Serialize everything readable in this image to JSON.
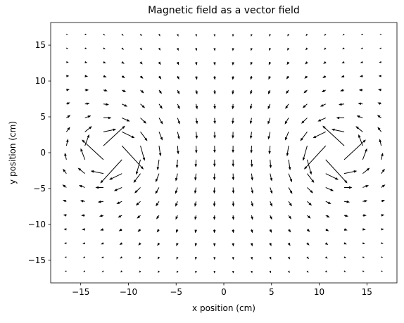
{
  "chart_data": {
    "type": "quiver",
    "title": "Magnetic field as a vector field",
    "x_label": "x position (cm)",
    "y_label": "y position (cm)",
    "color": "#000000",
    "xlim": [
      -18.15,
      18.15
    ],
    "ylim": [
      -18.15,
      18.15
    ],
    "xticks": [
      {
        "value": -15,
        "label": "−15"
      },
      {
        "value": -10,
        "label": "−10"
      },
      {
        "value": -5,
        "label": "−5"
      },
      0,
      5,
      10,
      15
    ],
    "yticks": [
      {
        "value": -15,
        "label": "−15"
      },
      {
        "value": -10,
        "label": "−10"
      },
      {
        "value": -5,
        "label": "−5"
      },
      0,
      5,
      10,
      15
    ],
    "x": [
      -16.5,
      -14.56,
      -12.62,
      -10.68,
      -8.74,
      -6.79,
      -4.85,
      -2.91,
      -0.97,
      0.97,
      2.91,
      4.85,
      6.79,
      8.74,
      10.68,
      12.62,
      14.56,
      16.5
    ],
    "y": [
      -16.5,
      -14.56,
      -12.62,
      -10.68,
      -8.74,
      -6.79,
      -4.85,
      -2.91,
      -0.97,
      0.97,
      2.91,
      4.85,
      6.79,
      8.74,
      10.68,
      12.62,
      14.56,
      16.5
    ],
    "u": [
      [
        -0.4,
        -0.42,
        -0.41,
        -0.39,
        -0.35,
        -0.29,
        -0.21,
        -0.13,
        -0.04,
        0.04,
        0.13,
        0.21,
        0.29,
        0.35,
        0.39,
        0.41,
        0.42,
        0.4
      ],
      [
        -0.47,
        -0.5,
        -0.5,
        -0.48,
        -0.43,
        -0.35,
        -0.26,
        -0.16,
        -0.06,
        0.06,
        0.16,
        0.26,
        0.35,
        0.43,
        0.48,
        0.5,
        0.5,
        0.47
      ],
      [
        -0.56,
        -0.6,
        -0.62,
        -0.6,
        -0.53,
        -0.44,
        -0.32,
        -0.2,
        -0.07,
        0.07,
        0.2,
        0.32,
        0.44,
        0.53,
        0.6,
        0.62,
        0.6,
        0.56
      ],
      [
        -0.66,
        -0.74,
        -0.78,
        -0.76,
        -0.67,
        -0.54,
        -0.39,
        -0.23,
        -0.08,
        0.08,
        0.23,
        0.39,
        0.54,
        0.67,
        0.76,
        0.78,
        0.74,
        0.66
      ],
      [
        -0.77,
        -0.92,
        -1.0,
        -0.98,
        -0.85,
        -0.66,
        -0.46,
        -0.27,
        -0.09,
        0.09,
        0.27,
        0.46,
        0.66,
        0.85,
        0.98,
        1.0,
        0.92,
        0.77
      ],
      [
        -0.89,
        -1.15,
        -1.34,
        -1.32,
        -1.1,
        -0.8,
        -0.52,
        -0.29,
        -0.09,
        0.09,
        0.29,
        0.52,
        0.8,
        1.1,
        1.32,
        1.34,
        1.15,
        0.89
      ],
      [
        -0.97,
        -1.45,
        -1.91,
        -1.9,
        -1.41,
        -0.9,
        -0.53,
        -0.28,
        -0.09,
        0.09,
        0.28,
        0.53,
        0.9,
        1.41,
        1.9,
        1.91,
        1.45,
        0.97
      ],
      [
        -0.87,
        -1.68,
        -3.04,
        -3.04,
        -1.65,
        -0.82,
        -0.43,
        -0.21,
        -0.06,
        0.06,
        0.21,
        0.43,
        0.82,
        1.65,
        3.04,
        3.04,
        1.68,
        0.87
      ],
      [
        -0.39,
        -1.02,
        -5.14,
        -5.14,
        -1.01,
        -0.37,
        -0.17,
        -0.08,
        -0.02,
        0.02,
        0.08,
        0.17,
        0.37,
        1.01,
        5.14,
        5.14,
        1.02,
        0.39
      ],
      [
        0.39,
        1.02,
        5.14,
        5.14,
        1.01,
        0.37,
        0.17,
        0.08,
        0.02,
        -0.02,
        -0.08,
        -0.17,
        -0.37,
        -1.01,
        -5.14,
        -5.14,
        -1.02,
        -0.39
      ],
      [
        0.87,
        1.68,
        3.04,
        3.04,
        1.65,
        0.82,
        0.43,
        0.21,
        0.06,
        -0.06,
        -0.21,
        -0.43,
        -0.82,
        -1.65,
        -3.04,
        -3.04,
        -1.68,
        -0.87
      ],
      [
        0.97,
        1.45,
        1.91,
        1.9,
        1.41,
        0.9,
        0.53,
        0.28,
        0.09,
        -0.09,
        -0.28,
        -0.53,
        -0.9,
        -1.41,
        -1.9,
        -1.91,
        -1.45,
        -0.97
      ],
      [
        0.89,
        1.15,
        1.34,
        1.32,
        1.1,
        0.8,
        0.52,
        0.29,
        0.09,
        -0.09,
        -0.29,
        -0.52,
        -0.8,
        -1.1,
        -1.32,
        -1.34,
        -1.15,
        -0.89
      ],
      [
        0.77,
        0.92,
        1.0,
        0.98,
        0.85,
        0.66,
        0.46,
        0.27,
        0.09,
        -0.09,
        -0.27,
        -0.46,
        -0.66,
        -0.85,
        -0.98,
        -1.0,
        -0.92,
        -0.77
      ],
      [
        0.66,
        0.74,
        0.78,
        0.76,
        0.67,
        0.54,
        0.39,
        0.23,
        0.08,
        -0.08,
        -0.23,
        -0.39,
        -0.54,
        -0.67,
        -0.76,
        -0.78,
        -0.74,
        -0.66
      ],
      [
        0.56,
        0.6,
        0.62,
        0.6,
        0.53,
        0.44,
        0.32,
        0.2,
        0.07,
        -0.07,
        -0.2,
        -0.32,
        -0.44,
        -0.53,
        -0.6,
        -0.62,
        -0.6,
        -0.56
      ],
      [
        0.47,
        0.5,
        0.5,
        0.48,
        0.43,
        0.35,
        0.26,
        0.16,
        0.06,
        -0.06,
        -0.16,
        -0.26,
        -0.35,
        -0.43,
        -0.48,
        -0.5,
        -0.5,
        -0.47
      ],
      [
        0.4,
        0.42,
        0.41,
        0.39,
        0.35,
        0.29,
        0.21,
        0.13,
        0.04,
        -0.04,
        -0.13,
        -0.21,
        -0.29,
        -0.35,
        -0.39,
        -0.41,
        -0.42,
        -0.4
      ]
    ],
    "v": [
      [
        -0.1,
        -0.17,
        -0.25,
        -0.33,
        -0.4,
        -0.47,
        -0.52,
        -0.55,
        -0.57,
        -0.57,
        -0.55,
        -0.52,
        -0.47,
        -0.4,
        -0.33,
        -0.25,
        -0.17,
        -0.1
      ],
      [
        -0.07,
        -0.16,
        -0.26,
        -0.36,
        -0.46,
        -0.54,
        -0.6,
        -0.65,
        -0.67,
        -0.67,
        -0.65,
        -0.6,
        -0.54,
        -0.46,
        -0.36,
        -0.26,
        -0.16,
        -0.07
      ],
      [
        -0.03,
        -0.14,
        -0.26,
        -0.4,
        -0.53,
        -0.64,
        -0.71,
        -0.76,
        -0.79,
        -0.79,
        -0.76,
        -0.71,
        -0.64,
        -0.53,
        -0.4,
        -0.26,
        -0.14,
        -0.03
      ],
      [
        0.04,
        -0.09,
        -0.26,
        -0.45,
        -0.62,
        -0.76,
        -0.85,
        -0.91,
        -0.93,
        -0.93,
        -0.91,
        -0.85,
        -0.76,
        -0.62,
        -0.45,
        -0.26,
        -0.09,
        0.04
      ],
      [
        0.16,
        0,
        -0.24,
        -0.51,
        -0.76,
        -0.93,
        -1.03,
        -1.08,
        -1.1,
        -1.1,
        -1.08,
        -1.03,
        -0.93,
        -0.76,
        -0.51,
        -0.24,
        0,
        0.16
      ],
      [
        0.36,
        0.18,
        -0.18,
        -0.62,
        -0.98,
        -1.18,
        -1.26,
        -1.28,
        -1.28,
        -1.28,
        -1.28,
        -1.26,
        -1.18,
        -0.98,
        -0.62,
        -0.18,
        0.18,
        0.36
      ],
      [
        0.69,
        0.54,
        0,
        -0.83,
        -1.37,
        -1.54,
        -1.53,
        -1.49,
        -1.47,
        -1.47,
        -1.49,
        -1.53,
        -1.54,
        -1.37,
        -0.83,
        0,
        0.54,
        0.69
      ],
      [
        1.16,
        1.35,
        0.63,
        -1.47,
        -2.2,
        -2.05,
        -1.83,
        -1.69,
        -1.62,
        -1.62,
        -1.69,
        -1.83,
        -2.05,
        -2.2,
        -1.47,
        0.63,
        1.35,
        1.16
      ],
      [
        1.64,
        2.71,
        4.75,
        -5.61,
        -3.58,
        -2.52,
        -2.05,
        -1.82,
        -1.72,
        -1.72,
        -1.82,
        -2.05,
        -2.52,
        -3.58,
        -5.61,
        4.75,
        2.71,
        1.64
      ],
      [
        1.64,
        2.71,
        4.75,
        -5.61,
        -3.58,
        -2.52,
        -2.05,
        -1.82,
        -1.72,
        -1.72,
        -1.82,
        -2.05,
        -2.52,
        -3.58,
        -5.61,
        4.75,
        2.71,
        1.64
      ],
      [
        1.16,
        1.35,
        0.63,
        -1.47,
        -2.2,
        -2.05,
        -1.83,
        -1.69,
        -1.62,
        -1.62,
        -1.69,
        -1.83,
        -2.05,
        -2.2,
        -1.47,
        0.63,
        1.35,
        1.16
      ],
      [
        0.69,
        0.54,
        0,
        -0.83,
        -1.37,
        -1.54,
        -1.53,
        -1.49,
        -1.47,
        -1.47,
        -1.49,
        -1.53,
        -1.54,
        -1.37,
        -0.83,
        0,
        0.54,
        0.69
      ],
      [
        0.36,
        0.18,
        -0.18,
        -0.62,
        -0.98,
        -1.18,
        -1.26,
        -1.28,
        -1.28,
        -1.28,
        -1.28,
        -1.26,
        -1.18,
        -0.98,
        -0.62,
        -0.18,
        0.18,
        0.36
      ],
      [
        0.16,
        0,
        -0.24,
        -0.51,
        -0.76,
        -0.93,
        -1.03,
        -1.08,
        -1.1,
        -1.1,
        -1.08,
        -1.03,
        -0.93,
        -0.76,
        -0.51,
        -0.24,
        0,
        0.16
      ],
      [
        0.04,
        -0.09,
        -0.26,
        -0.45,
        -0.62,
        -0.76,
        -0.85,
        -0.91,
        -0.93,
        -0.93,
        -0.91,
        -0.85,
        -0.76,
        -0.62,
        -0.45,
        -0.26,
        -0.09,
        0.04
      ],
      [
        -0.03,
        -0.14,
        -0.26,
        -0.4,
        -0.53,
        -0.64,
        -0.71,
        -0.76,
        -0.79,
        -0.79,
        -0.76,
        -0.71,
        -0.64,
        -0.53,
        -0.4,
        -0.26,
        -0.14,
        -0.03
      ],
      [
        -0.07,
        -0.16,
        -0.26,
        -0.36,
        -0.46,
        -0.54,
        -0.6,
        -0.65,
        -0.67,
        -0.67,
        -0.65,
        -0.6,
        -0.54,
        -0.46,
        -0.36,
        -0.26,
        -0.16,
        -0.07
      ],
      [
        -0.1,
        -0.17,
        -0.25,
        -0.33,
        -0.4,
        -0.47,
        -0.52,
        -0.55,
        -0.57,
        -0.57,
        -0.55,
        -0.52,
        -0.47,
        -0.4,
        -0.33,
        -0.25,
        -0.17,
        -0.1
      ]
    ]
  }
}
